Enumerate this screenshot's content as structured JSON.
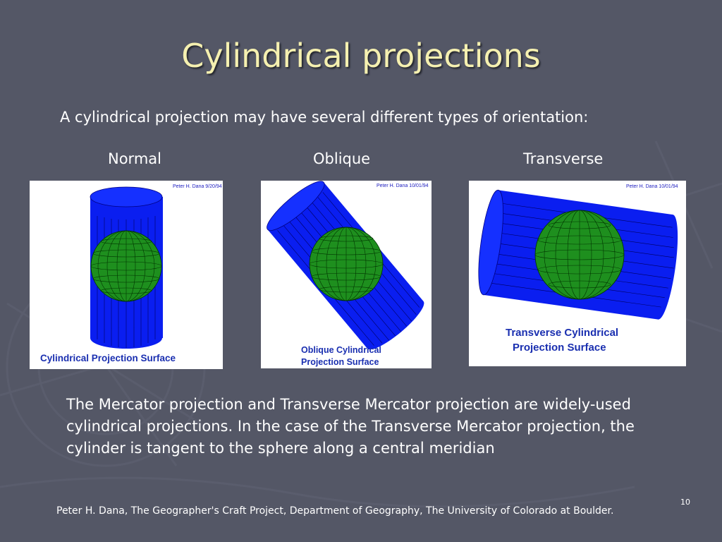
{
  "slide": {
    "title": "Cylindrical projections",
    "intro": "A cylindrical projection may have several different types of orientation:",
    "labels": {
      "normal": "Normal",
      "oblique": "Oblique",
      "transverse": "Transverse"
    },
    "figures": {
      "normal": {
        "credit": "Peter H. Dana 9/20/94",
        "caption": "Cylindrical  Projection Surface"
      },
      "oblique": {
        "credit": "Peter H. Dana 10/01/94",
        "caption_line1": "Oblique Cylindrical",
        "caption_line2": "Projection Surface"
      },
      "transverse": {
        "credit": "Peter H. Dana 10/01/94",
        "caption_line1": "Transverse Cylindrical",
        "caption_line2": "Projection Surface"
      }
    },
    "body": "The Mercator projection and Transverse Mercator projection are widely-used cylindrical projections.  In the case of the Transverse Mercator projection, the cylinder is tangent to the sphere along a central meridian",
    "footer": "Peter H. Dana, The Geographer's Craft Project, Department of Geography, The University of Colorado at Boulder.",
    "slide_number": "10"
  },
  "colors": {
    "background": "#545766",
    "title": "#f5f0b0",
    "cylinder": "#0a1ef0",
    "globe": "#1e8f1e",
    "caption": "#1a2fb0"
  }
}
